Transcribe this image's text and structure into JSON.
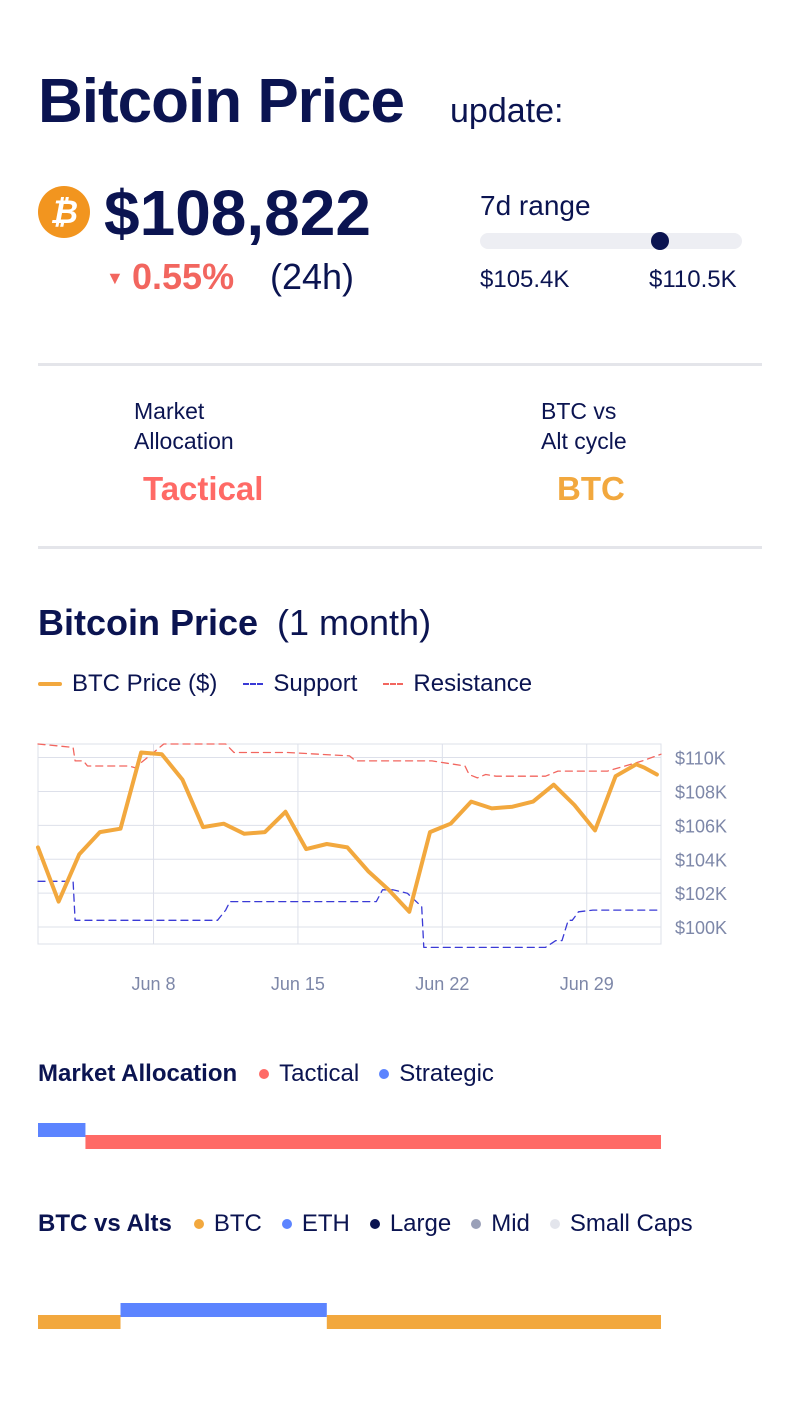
{
  "header": {
    "title": "Bitcoin Price",
    "subtitle": "update:"
  },
  "ticker": {
    "icon": "bitcoin-icon",
    "icon_glyph": "₿",
    "price": "$108,822",
    "change_arrow": "▼",
    "change": "0.55%",
    "change_period": "(24h)",
    "range_label": "7d range",
    "range_low": "$105.4K",
    "range_high": "$110.5K",
    "range_position": 0.7
  },
  "stats": {
    "allocation": {
      "label_line1": "Market",
      "label_line2": "Allocation",
      "value": "Tactical"
    },
    "cycle": {
      "label_line1": "BTC vs",
      "label_line2": "Alt cycle",
      "value": "BTC"
    }
  },
  "colors": {
    "navy": "#0b1451",
    "price": "#f2a83e",
    "support": "#3a3ad6",
    "resistance": "#f2665f",
    "tactical": "#ff6a66",
    "strategic": "#5c84ff",
    "btc": "#f2a83e",
    "eth": "#5c84ff",
    "large": "#0b1451",
    "mid": "#9aa0b8",
    "small_caps": "#e3e5ec",
    "grid": "#dde0ea",
    "axis_text": "#7d87a8"
  },
  "price_section": {
    "title": "Bitcoin Price",
    "subtitle": "(1 month)",
    "legend": {
      "price": "BTC Price ($)",
      "support": "Support",
      "resistance": "Resistance"
    }
  },
  "chart_data": {
    "type": "line",
    "ylim": [
      99000,
      110800
    ],
    "y_ticks": [
      100000,
      102000,
      104000,
      106000,
      108000,
      110000
    ],
    "y_tick_labels": [
      "$100K",
      "$102K",
      "$104K",
      "$106K",
      "$108K",
      "$110K"
    ],
    "x_ticks": [
      7.5,
      14.5,
      21.5,
      28.5
    ],
    "x_tick_labels": [
      "Jun 8",
      "Jun 15",
      "Jun 22",
      "Jun 29"
    ],
    "xlim": [
      1.9,
      32.1
    ],
    "series": [
      {
        "name": "BTC Price ($)",
        "style": "solid",
        "x": [
          1.9,
          2.9,
          3.9,
          4.9,
          5.9,
          6.9,
          7.9,
          8.9,
          9.9,
          10.9,
          11.9,
          12.9,
          13.9,
          14.9,
          15.9,
          16.9,
          17.9,
          18.9,
          19.9,
          20.9,
          21.9,
          22.9,
          23.9,
          24.9,
          25.9,
          26.9,
          27.9,
          28.9,
          29.9,
          30.9,
          31.3,
          31.9
        ],
        "y": [
          104700,
          101500,
          104300,
          105600,
          105800,
          110300,
          110200,
          108700,
          105900,
          106100,
          105500,
          105600,
          106800,
          104600,
          104900,
          104700,
          103300,
          102200,
          100900,
          105600,
          106100,
          107400,
          107000,
          107100,
          107400,
          108400,
          107200,
          105700,
          108900,
          109600,
          109400,
          109000
        ]
      },
      {
        "name": "Support",
        "style": "dashed",
        "x": [
          1.9,
          3.6,
          3.7,
          10.6,
          11.0,
          11.2,
          18.3,
          18.6,
          19.1,
          19.8,
          20.5,
          20.6,
          26.5,
          27.0,
          27.3,
          27.6,
          27.8,
          28.1,
          28.8,
          32.1
        ],
        "y": [
          102700,
          102700,
          100400,
          100400,
          101000,
          101500,
          101500,
          102200,
          102200,
          102000,
          101200,
          98800,
          98800,
          99200,
          99200,
          100400,
          100400,
          100900,
          101000,
          101000
        ]
      },
      {
        "name": "Resistance",
        "style": "dashed",
        "x": [
          1.9,
          3.6,
          3.7,
          4.1,
          4.3,
          6.3,
          6.6,
          8.0,
          11.0,
          11.4,
          14.0,
          17.0,
          17.3,
          21.0,
          22.6,
          22.8,
          23.2,
          23.6,
          24.1,
          26.5,
          27.1,
          28.7,
          29.5,
          31.2,
          32.1
        ],
        "y": [
          110800,
          110600,
          109800,
          109800,
          109500,
          109500,
          109400,
          110800,
          110800,
          110300,
          110300,
          110100,
          109800,
          109800,
          109500,
          109000,
          108800,
          109000,
          108900,
          108900,
          109200,
          109200,
          109200,
          109800,
          110200
        ]
      }
    ]
  },
  "allocation_timeline": {
    "title": "Market Allocation",
    "legend": [
      {
        "label": "Tactical",
        "key": "tactical"
      },
      {
        "label": "Strategic",
        "key": "strategic"
      }
    ],
    "segments": [
      {
        "state": "strategic",
        "start": 1.9,
        "end": 4.2
      },
      {
        "state": "tactical",
        "start": 4.2,
        "end": 32.1
      }
    ]
  },
  "cycle_timeline": {
    "title": "BTC vs Alts",
    "legend": [
      {
        "label": "BTC",
        "key": "btc"
      },
      {
        "label": "ETH",
        "key": "eth"
      },
      {
        "label": "Large",
        "key": "large"
      },
      {
        "label": "Mid",
        "key": "mid"
      },
      {
        "label": "Small Caps",
        "key": "small_caps"
      }
    ],
    "segments": [
      {
        "state": "btc",
        "start": 1.9,
        "end": 5.9
      },
      {
        "state": "eth",
        "start": 5.9,
        "end": 15.9
      },
      {
        "state": "btc",
        "start": 15.9,
        "end": 32.1
      }
    ]
  }
}
